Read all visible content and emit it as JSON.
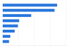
{
  "chart_data": {
    "type": "bar",
    "orientation": "horizontal",
    "categories": [
      null,
      null,
      null,
      null,
      null,
      null,
      null,
      null
    ],
    "values": [
      86,
      82,
      45,
      26,
      24,
      19,
      12,
      10
    ],
    "color": "#2876dd",
    "xlim": [
      0,
      100
    ],
    "xticks": [
      0,
      25,
      50,
      75,
      100
    ],
    "grid": true,
    "tick_labels": false
  }
}
